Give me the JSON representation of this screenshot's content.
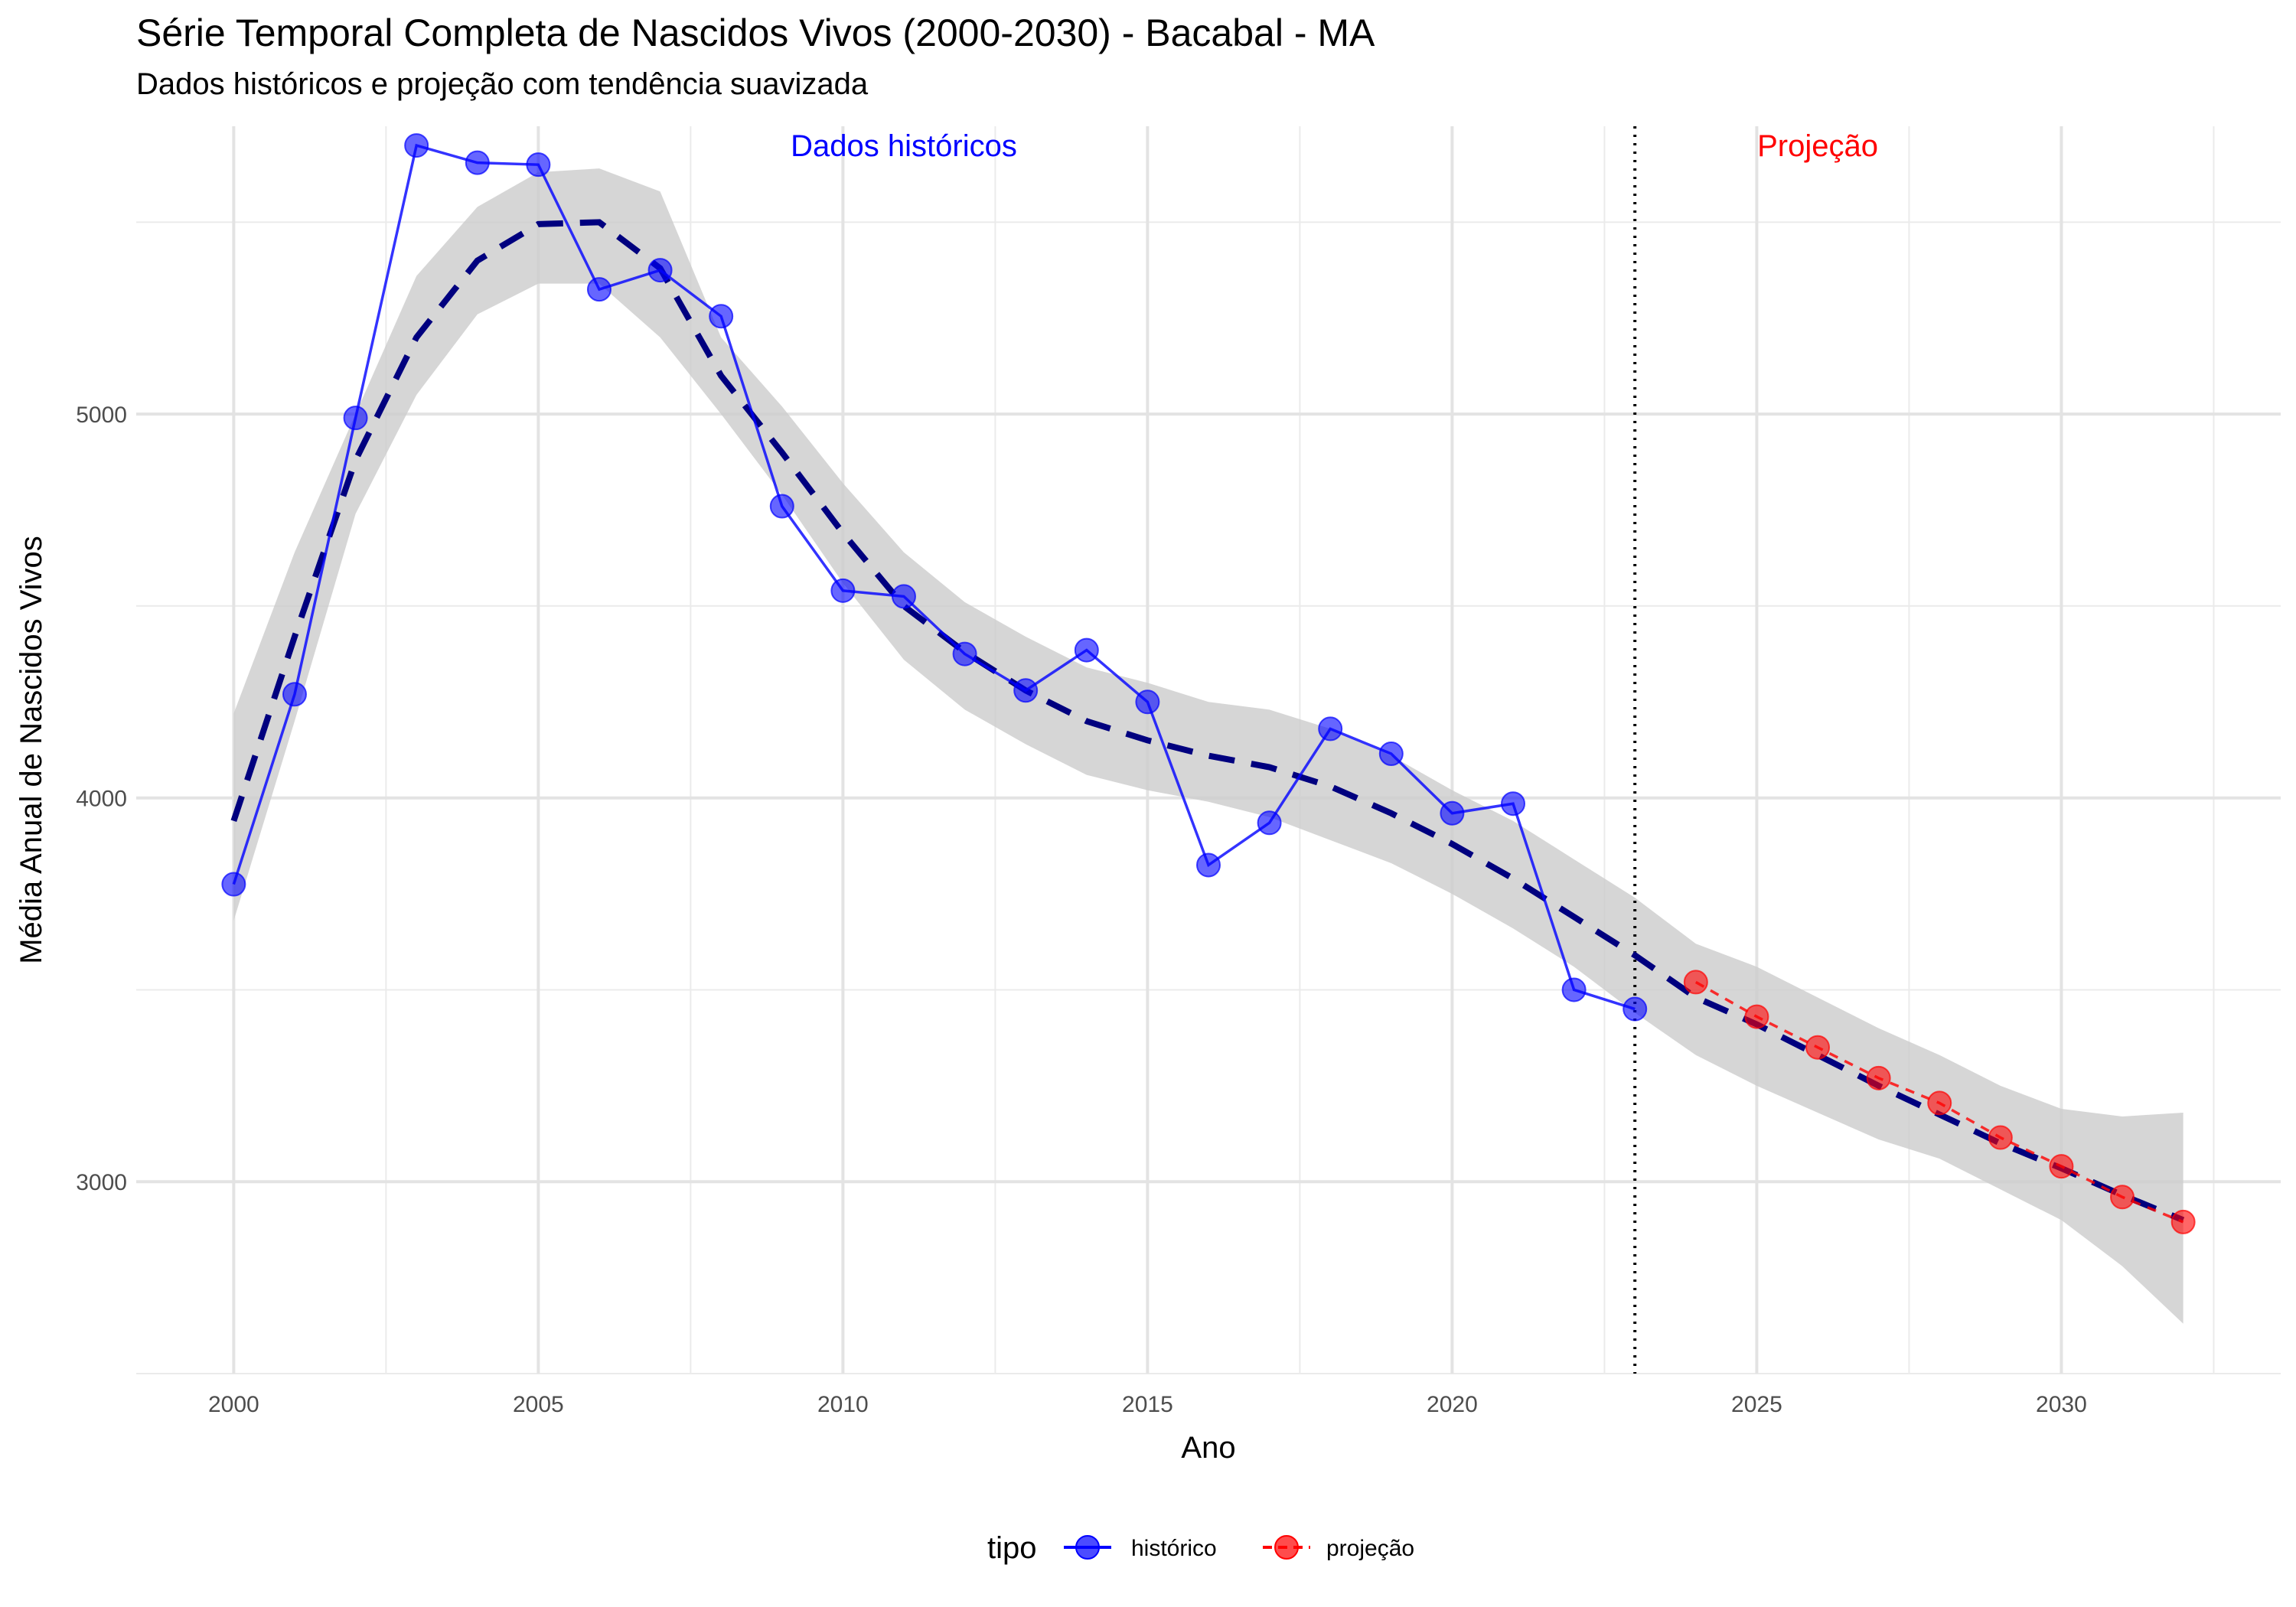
{
  "chart_data": {
    "type": "line",
    "title": "Série Temporal Completa de Nascidos Vivos (2000-2030) -  Bacabal - MA",
    "subtitle": "Dados históricos e projeção com tendência suavizada",
    "xlabel": "Ano",
    "ylabel": "Média Anual de Nascidos Vivos",
    "xlim": [
      1998.4,
      2033.6
    ],
    "ylim": [
      2500,
      5750
    ],
    "x_ticks": [
      2000,
      2005,
      2010,
      2015,
      2020,
      2025,
      2030
    ],
    "y_ticks": [
      3000,
      4000,
      5000
    ],
    "grid": true,
    "legend": {
      "title": "tipo",
      "position": "bottom",
      "entries": [
        "histórico",
        "projeção"
      ]
    },
    "annotations": [
      {
        "text": "Dados históricos",
        "x": 2011,
        "y": 5700,
        "color": "#0000ff"
      },
      {
        "text": "Projeção",
        "x": 2026,
        "y": 5700,
        "color": "#ff0000"
      }
    ],
    "vline": {
      "x": 2023,
      "style": "dotted"
    },
    "series": [
      {
        "name": "histórico",
        "color": "#0000ff",
        "x": [
          2000,
          2001,
          2002,
          2003,
          2004,
          2005,
          2006,
          2007,
          2008,
          2009,
          2010,
          2011,
          2012,
          2013,
          2014,
          2015,
          2016,
          2017,
          2018,
          2019,
          2020,
          2021,
          2022,
          2023
        ],
        "y": [
          3775,
          4270,
          4990,
          5700,
          5655,
          5650,
          5325,
          5375,
          5255,
          4760,
          4540,
          4525,
          4375,
          4280,
          4385,
          4250,
          3825,
          3935,
          4180,
          4115,
          3960,
          3985,
          3500,
          3450
        ]
      },
      {
        "name": "projeção",
        "color": "#ff0000",
        "x": [
          2024,
          2025,
          2026,
          2027,
          2028,
          2029,
          2030,
          2031,
          2032
        ],
        "y": [
          3520,
          3430,
          3350,
          3270,
          3205,
          3115,
          3040,
          2960,
          2895
        ]
      }
    ],
    "trend": {
      "style": "dashed",
      "color": "#00007f",
      "x": [
        2000,
        2001,
        2002,
        2003,
        2004,
        2005,
        2006,
        2007,
        2008,
        2009,
        2010,
        2011,
        2012,
        2013,
        2014,
        2015,
        2016,
        2017,
        2018,
        2019,
        2020,
        2021,
        2022,
        2023,
        2024,
        2025,
        2026,
        2027,
        2028,
        2029,
        2030,
        2031,
        2032
      ],
      "y": [
        3940,
        4420,
        4880,
        5200,
        5400,
        5495,
        5500,
        5380,
        5100,
        4900,
        4690,
        4500,
        4380,
        4280,
        4200,
        4150,
        4110,
        4080,
        4030,
        3960,
        3880,
        3790,
        3690,
        3590,
        3480,
        3410,
        3330,
        3250,
        3175,
        3100,
        3035,
        2965,
        2900
      ],
      "ci_low": [
        3680,
        4200,
        4740,
        5050,
        5260,
        5340,
        5340,
        5200,
        5000,
        4790,
        4560,
        4360,
        4230,
        4140,
        4060,
        4020,
        3990,
        3950,
        3890,
        3830,
        3750,
        3660,
        3560,
        3440,
        3330,
        3250,
        3180,
        3110,
        3060,
        2980,
        2900,
        2780,
        2630
      ],
      "ci_high": [
        4220,
        4640,
        5000,
        5360,
        5540,
        5630,
        5640,
        5580,
        5200,
        5020,
        4820,
        4640,
        4510,
        4420,
        4340,
        4300,
        4250,
        4230,
        4180,
        4110,
        4020,
        3940,
        3840,
        3740,
        3620,
        3560,
        3480,
        3400,
        3330,
        3250,
        3190,
        3170,
        3180
      ]
    }
  }
}
